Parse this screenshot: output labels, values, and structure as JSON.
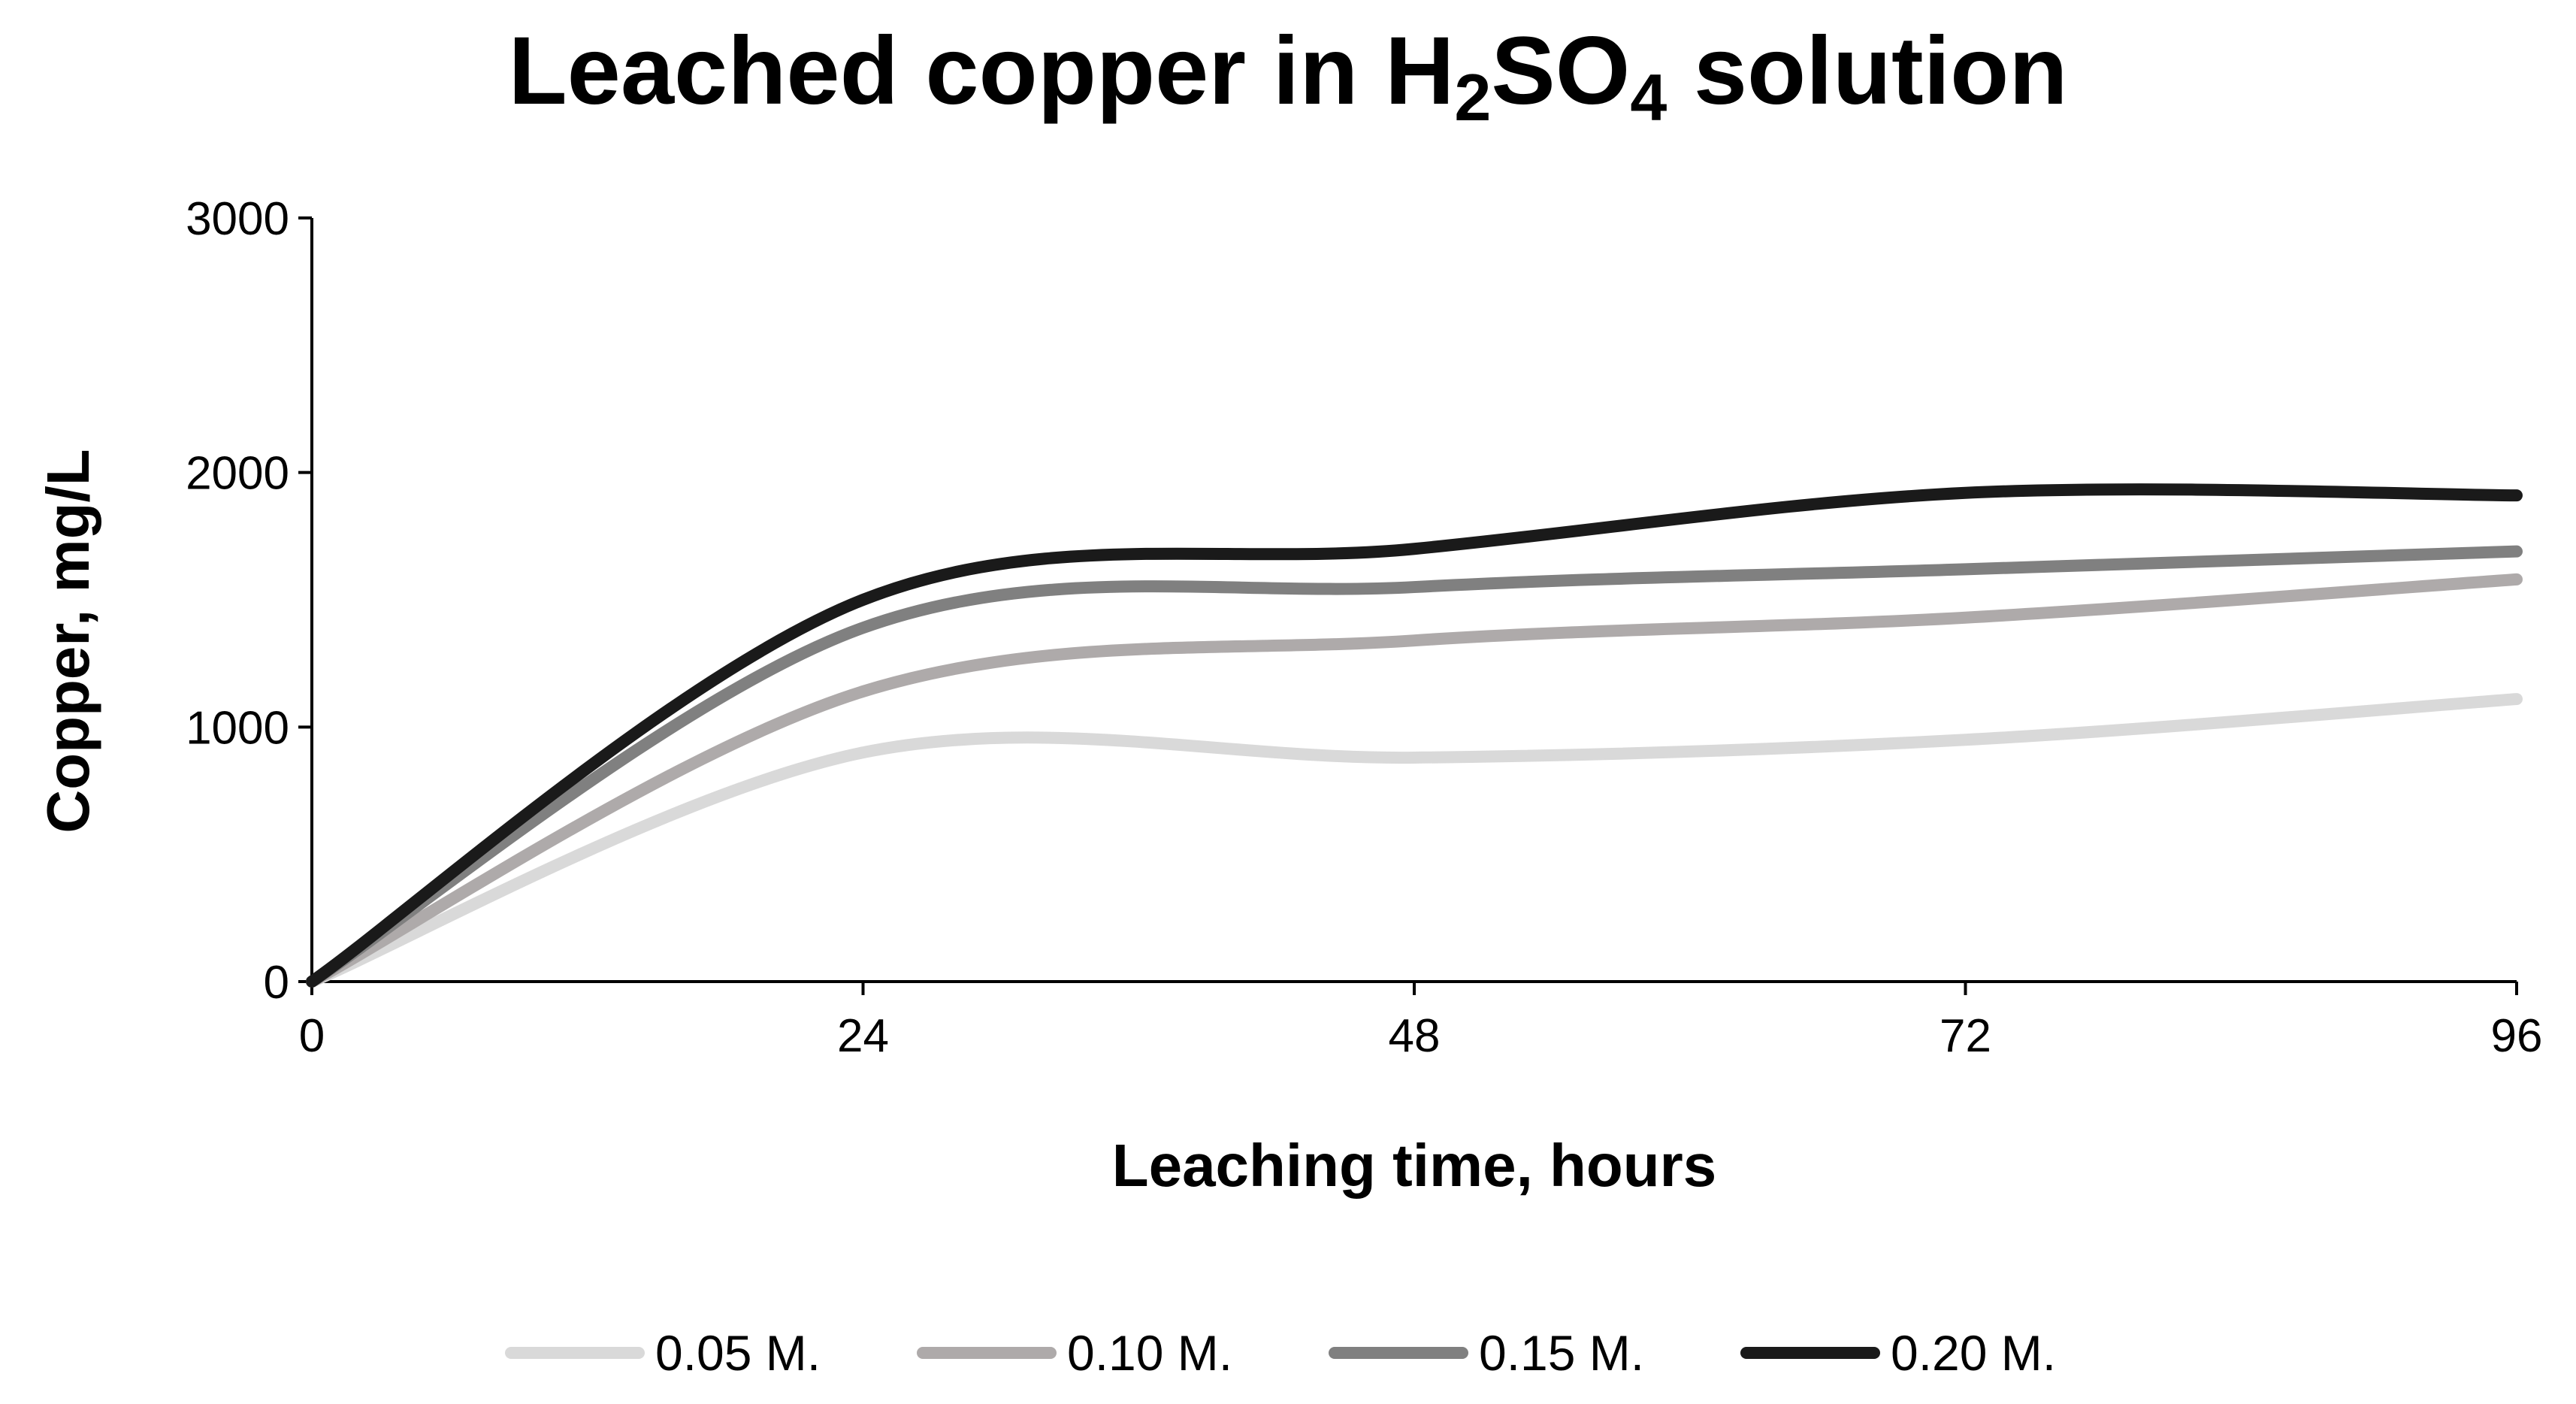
{
  "chart_data": {
    "type": "line",
    "title": {
      "prefix": "Leached copper in H",
      "sub1": "2",
      "mid": "SO",
      "sub2": "4",
      "suffix": " solution"
    },
    "xlabel": "Leaching time, hours",
    "ylabel": "Copper, mg/L",
    "xlim": [
      0,
      96
    ],
    "ylim": [
      0,
      3000
    ],
    "x_ticks": [
      "0",
      "24",
      "48",
      "72",
      "96"
    ],
    "y_ticks": [
      "0",
      "1000",
      "2000",
      "3000"
    ],
    "grid": false,
    "legend_position": "bottom",
    "x": [
      0,
      24,
      48,
      72,
      96
    ],
    "series": [
      {
        "name": "0.05 M.",
        "color": "#d9d9d9",
        "values": [
          0,
          900,
          880,
          950,
          1110
        ]
      },
      {
        "name": "0.10 M.",
        "color": "#aeaaaa",
        "values": [
          0,
          1140,
          1340,
          1430,
          1580
        ]
      },
      {
        "name": "0.15 M.",
        "color": "#808080",
        "values": [
          0,
          1390,
          1550,
          1620,
          1690
        ]
      },
      {
        "name": "0.20 M.",
        "color": "#1a1a1a",
        "values": [
          0,
          1500,
          1700,
          1920,
          1910
        ]
      }
    ]
  }
}
